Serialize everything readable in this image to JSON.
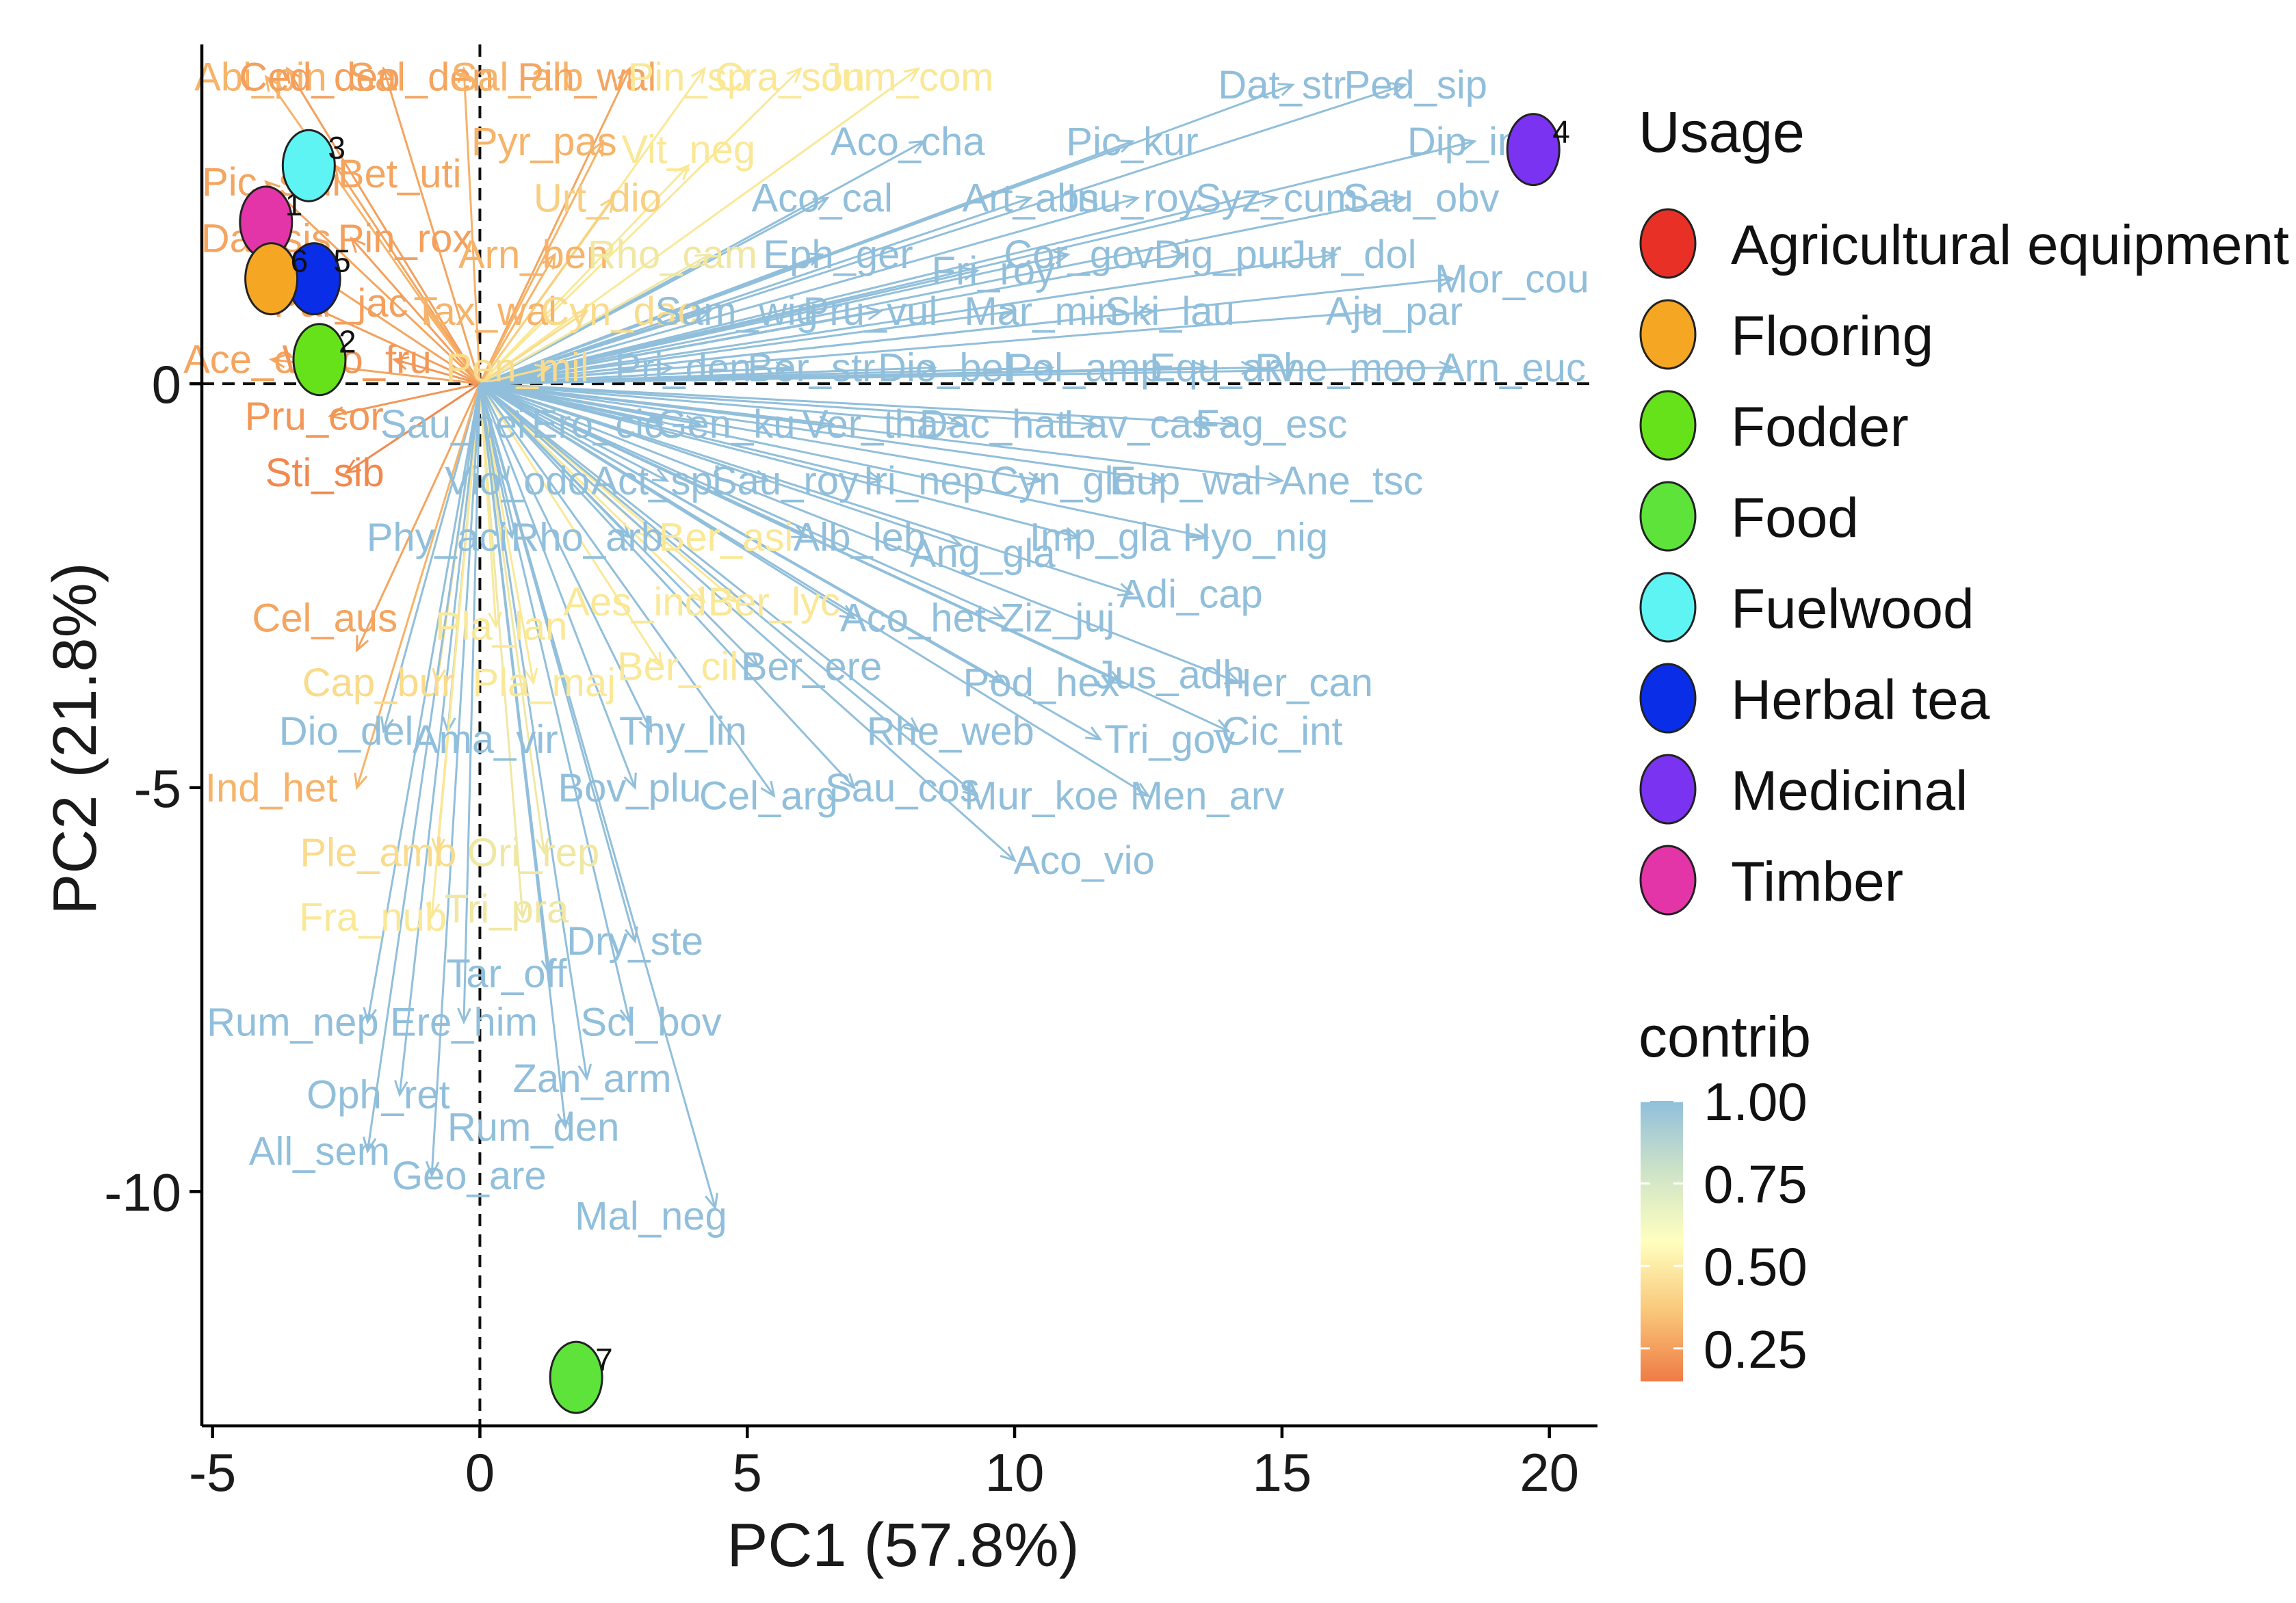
{
  "chart_data": {
    "type": "scatter",
    "subtype": "pca-biplot",
    "xlabel": "PC1 (57.8%)",
    "ylabel": "PC2 (21.8%)",
    "xlim": [
      -5.2,
      20.9
    ],
    "ylim": [
      -12.9,
      4.2
    ],
    "xticks": [
      -5,
      0,
      5,
      10,
      15,
      20
    ],
    "yticks": [
      -10,
      -5,
      0
    ],
    "reference_lines": {
      "x": 0,
      "y": 0,
      "style": "dashed"
    },
    "observations": [
      {
        "id": "1",
        "usage": "Timber",
        "x": -4.0,
        "y": 2.0
      },
      {
        "id": "2",
        "usage": "Fodder",
        "x": -3.0,
        "y": 0.3
      },
      {
        "id": "3",
        "usage": "Fuelwood",
        "x": -3.2,
        "y": 2.7
      },
      {
        "id": "4",
        "usage": "Medicinal",
        "x": 19.7,
        "y": 2.9
      },
      {
        "id": "5",
        "usage": "Herbal tea",
        "x": -3.1,
        "y": 1.3
      },
      {
        "id": "6",
        "usage": "Flooring",
        "x": -3.9,
        "y": 1.3
      },
      {
        "id": "7",
        "usage": "Food",
        "x": 1.8,
        "y": -12.3
      }
    ],
    "variables": [
      {
        "name": "Abi_pin",
        "x": -4.0,
        "y": 3.8,
        "lx": -4.1,
        "ly": 3.8,
        "contrib": 0.35
      },
      {
        "name": "Ced_deo",
        "x": -3.6,
        "y": 3.9,
        "lx": -3.0,
        "ly": 3.8,
        "contrib": 0.28
      },
      {
        "name": "Sal_den",
        "x": -1.8,
        "y": 3.9,
        "lx": -1.1,
        "ly": 3.8,
        "contrib": 0.3
      },
      {
        "name": "Sal_alb",
        "x": -0.3,
        "y": 3.9,
        "lx": 0.7,
        "ly": 3.8,
        "contrib": 0.35
      },
      {
        "name": "Pin_wal",
        "x": 2.8,
        "y": 3.9,
        "lx": 2.0,
        "ly": 3.8,
        "contrib": 0.3
      },
      {
        "name": "Pin_sp",
        "x": 4.2,
        "y": 3.9,
        "lx": 3.9,
        "ly": 3.8,
        "contrib": 0.55
      },
      {
        "name": "Cra_son",
        "x": 6.0,
        "y": 3.9,
        "lx": 5.8,
        "ly": 3.8,
        "contrib": 0.55
      },
      {
        "name": "Jum_com",
        "x": 8.2,
        "y": 3.9,
        "lx": 8.0,
        "ly": 3.8,
        "contrib": 0.55
      },
      {
        "name": "Dat_str",
        "x": 15.2,
        "y": 3.7,
        "lx": 15.0,
        "ly": 3.7,
        "contrib": 1.0
      },
      {
        "name": "Ped_sip",
        "x": 17.3,
        "y": 3.7,
        "lx": 17.5,
        "ly": 3.7,
        "contrib": 1.0
      },
      {
        "name": "Dip_ine",
        "x": 18.6,
        "y": 3.0,
        "lx": 18.6,
        "ly": 3.0,
        "contrib": 1.0
      },
      {
        "name": "Aco_cha",
        "x": 8.3,
        "y": 3.0,
        "lx": 8.0,
        "ly": 3.0,
        "contrib": 1.0
      },
      {
        "name": "Pic_kur",
        "x": 12.2,
        "y": 3.0,
        "lx": 12.2,
        "ly": 3.0,
        "contrib": 1.0
      },
      {
        "name": "Pyr_pas",
        "x": 2.3,
        "y": 3.0,
        "lx": 1.2,
        "ly": 3.0,
        "contrib": 0.35
      },
      {
        "name": "Vit_neg",
        "x": 3.9,
        "y": 2.7,
        "lx": 3.9,
        "ly": 2.9,
        "contrib": 0.55
      },
      {
        "name": "Bet_uti",
        "x": -2.7,
        "y": 2.7,
        "lx": -1.5,
        "ly": 2.6,
        "contrib": 0.3
      },
      {
        "name": "Pic_smi",
        "x": -4.0,
        "y": 2.5,
        "lx": -3.9,
        "ly": 2.5,
        "contrib": 0.3
      },
      {
        "name": "Aco_cal",
        "x": 6.5,
        "y": 2.3,
        "lx": 6.4,
        "ly": 2.3,
        "contrib": 1.0
      },
      {
        "name": "Art_abs",
        "x": 10.3,
        "y": 2.3,
        "lx": 10.3,
        "ly": 2.3,
        "contrib": 1.0
      },
      {
        "name": "Inu_roy",
        "x": 12.3,
        "y": 2.3,
        "lx": 12.2,
        "ly": 2.3,
        "contrib": 1.0
      },
      {
        "name": "Syz_cum",
        "x": 14.9,
        "y": 2.3,
        "lx": 14.9,
        "ly": 2.3,
        "contrib": 1.0
      },
      {
        "name": "Sau_obv",
        "x": 17.3,
        "y": 2.3,
        "lx": 17.6,
        "ly": 2.3,
        "contrib": 1.0
      },
      {
        "name": "Urt_dio",
        "x": 2.5,
        "y": 2.3,
        "lx": 2.2,
        "ly": 2.3,
        "contrib": 0.45
      },
      {
        "name": "Dal_sis",
        "x": -4.1,
        "y": 1.8,
        "lx": -4.0,
        "ly": 1.8,
        "contrib": 0.3
      },
      {
        "name": "Pin_rox",
        "x": -2.4,
        "y": 1.8,
        "lx": -1.4,
        "ly": 1.8,
        "contrib": 0.28
      },
      {
        "name": "Arn_ben",
        "x": 1.4,
        "y": 1.6,
        "lx": 1.0,
        "ly": 1.6,
        "contrib": 0.35
      },
      {
        "name": "Rho_cam",
        "x": 4.3,
        "y": 1.6,
        "lx": 3.6,
        "ly": 1.6,
        "contrib": 0.6
      },
      {
        "name": "Eph_ger",
        "x": 6.4,
        "y": 1.6,
        "lx": 6.7,
        "ly": 1.6,
        "contrib": 1.0
      },
      {
        "name": "Cor_gov",
        "x": 11.0,
        "y": 1.6,
        "lx": 11.2,
        "ly": 1.6,
        "contrib": 1.0
      },
      {
        "name": "Dig_pur",
        "x": 13.2,
        "y": 1.6,
        "lx": 13.9,
        "ly": 1.6,
        "contrib": 1.0
      },
      {
        "name": "Jur_dol",
        "x": 16.0,
        "y": 1.6,
        "lx": 16.3,
        "ly": 1.6,
        "contrib": 1.0
      },
      {
        "name": "Fri_roy",
        "x": 9.3,
        "y": 1.4,
        "lx": 9.6,
        "ly": 1.4,
        "contrib": 1.0
      },
      {
        "name": "Mor_cou",
        "x": 18.2,
        "y": 1.3,
        "lx": 19.3,
        "ly": 1.3,
        "contrib": 1.0
      },
      {
        "name": "Par_jac",
        "x": -3.3,
        "y": 1.0,
        "lx": -2.6,
        "ly": 1.0,
        "contrib": 0.28
      },
      {
        "name": "Tax_wal",
        "x": -1.0,
        "y": 0.9,
        "lx": 0.1,
        "ly": 0.9,
        "contrib": 0.35
      },
      {
        "name": "Cyn_dac",
        "x": 2.0,
        "y": 0.9,
        "lx": 2.6,
        "ly": 0.9,
        "contrib": 0.5
      },
      {
        "name": "Sam_wig",
        "x": 4.3,
        "y": 0.9,
        "lx": 4.8,
        "ly": 0.9,
        "contrib": 1.0
      },
      {
        "name": "Pru_vul",
        "x": 7.5,
        "y": 0.9,
        "lx": 7.3,
        "ly": 0.9,
        "contrib": 1.0
      },
      {
        "name": "Mar_min",
        "x": 10.0,
        "y": 0.9,
        "lx": 10.5,
        "ly": 0.9,
        "contrib": 1.0
      },
      {
        "name": "Ski_lau",
        "x": 12.6,
        "y": 0.9,
        "lx": 12.9,
        "ly": 0.9,
        "contrib": 1.0
      },
      {
        "name": "Aju_par",
        "x": 16.8,
        "y": 0.9,
        "lx": 17.1,
        "ly": 0.9,
        "contrib": 1.0
      },
      {
        "name": "Ace_cae",
        "x": -3.9,
        "y": 0.3,
        "lx": -4.1,
        "ly": 0.3,
        "contrib": 0.3
      },
      {
        "name": "Woo_fru",
        "x": -1.6,
        "y": 0.3,
        "lx": -2.3,
        "ly": 0.3,
        "contrib": 0.25
      },
      {
        "name": "Pen_mil",
        "x": 1.3,
        "y": 0.2,
        "lx": 0.7,
        "ly": 0.2,
        "contrib": 0.5
      },
      {
        "name": "Pri_den",
        "x": 3.6,
        "y": 0.2,
        "lx": 3.8,
        "ly": 0.2,
        "contrib": 1.0
      },
      {
        "name": "Ber_str",
        "x": 5.8,
        "y": 0.2,
        "lx": 6.2,
        "ly": 0.2,
        "contrib": 1.0
      },
      {
        "name": "Dio_bel",
        "x": 8.5,
        "y": 0.2,
        "lx": 8.7,
        "ly": 0.2,
        "contrib": 1.0
      },
      {
        "name": "Pol_amp",
        "x": 10.7,
        "y": 0.2,
        "lx": 11.3,
        "ly": 0.2,
        "contrib": 1.0
      },
      {
        "name": "Equ_arv",
        "x": 13.6,
        "y": 0.2,
        "lx": 13.9,
        "ly": 0.2,
        "contrib": 1.0
      },
      {
        "name": "Rhe_moo",
        "x": 14.5,
        "y": 0.2,
        "lx": 16.1,
        "ly": 0.2,
        "contrib": 1.0
      },
      {
        "name": "Arn_euc",
        "x": 18.2,
        "y": 0.2,
        "lx": 19.3,
        "ly": 0.2,
        "contrib": 1.0
      },
      {
        "name": "Pru_cor",
        "x": -2.8,
        "y": -0.4,
        "lx": -3.1,
        "ly": -0.4,
        "contrib": 0.25
      },
      {
        "name": "Sau_hei",
        "x": 0.8,
        "y": -0.5,
        "lx": -0.5,
        "ly": -0.5,
        "contrib": 1.0
      },
      {
        "name": "Ero_cic",
        "x": 3.4,
        "y": -0.5,
        "lx": 2.2,
        "ly": -0.5,
        "contrib": 1.0
      },
      {
        "name": "Gen_ku",
        "x": 4.1,
        "y": -0.5,
        "lx": 4.6,
        "ly": -0.5,
        "contrib": 1.0
      },
      {
        "name": "Ver_tha",
        "x": 6.6,
        "y": -0.5,
        "lx": 7.3,
        "ly": -0.5,
        "contrib": 1.0
      },
      {
        "name": "Dac_hat",
        "x": 9.0,
        "y": -0.5,
        "lx": 9.6,
        "ly": -0.5,
        "contrib": 1.0
      },
      {
        "name": "Lav_cas",
        "x": 11.5,
        "y": -0.5,
        "lx": 12.3,
        "ly": -0.5,
        "contrib": 1.0
      },
      {
        "name": "Fag_esc",
        "x": 14.1,
        "y": -0.5,
        "lx": 14.8,
        "ly": -0.5,
        "contrib": 1.0
      },
      {
        "name": "Sti_sib",
        "x": -2.5,
        "y": -1.1,
        "lx": -2.9,
        "ly": -1.1,
        "contrib": 0.2
      },
      {
        "name": "Vio_odo",
        "x": 0.5,
        "y": -1.2,
        "lx": 0.7,
        "ly": -1.2,
        "contrib": 1.0
      },
      {
        "name": "Act_spi",
        "x": 3.5,
        "y": -1.2,
        "lx": 3.3,
        "ly": -1.2,
        "contrib": 1.0
      },
      {
        "name": "Sau_roy",
        "x": 5.4,
        "y": -1.2,
        "lx": 5.7,
        "ly": -1.2,
        "contrib": 1.0
      },
      {
        "name": "Iri_nep",
        "x": 7.5,
        "y": -1.2,
        "lx": 8.3,
        "ly": -1.2,
        "contrib": 1.0
      },
      {
        "name": "Cyn_glo",
        "x": 10.5,
        "y": -1.2,
        "lx": 10.9,
        "ly": -1.2,
        "contrib": 1.0
      },
      {
        "name": "Eup_wal",
        "x": 12.8,
        "y": -1.2,
        "lx": 13.2,
        "ly": -1.2,
        "contrib": 1.0
      },
      {
        "name": "Ane_tsc",
        "x": 15.0,
        "y": -1.2,
        "lx": 16.3,
        "ly": -1.2,
        "contrib": 1.0
      },
      {
        "name": "Phy_aci",
        "x": 0.6,
        "y": -1.9,
        "lx": -0.8,
        "ly": -1.9,
        "contrib": 1.0
      },
      {
        "name": "Rho_arb",
        "x": 2.8,
        "y": -1.9,
        "lx": 2.0,
        "ly": -1.9,
        "contrib": 1.0
      },
      {
        "name": "Ber_asi",
        "x": 3.2,
        "y": -1.9,
        "lx": 4.6,
        "ly": -1.9,
        "contrib": 0.55
      },
      {
        "name": "Alb_leb",
        "x": 6.1,
        "y": -1.9,
        "lx": 7.1,
        "ly": -1.9,
        "contrib": 1.0
      },
      {
        "name": "Ang_gla",
        "x": 9.0,
        "y": -2.0,
        "lx": 9.4,
        "ly": -2.1,
        "contrib": 1.0
      },
      {
        "name": "Imp_gla",
        "x": 11.2,
        "y": -1.9,
        "lx": 11.6,
        "ly": -1.9,
        "contrib": 1.0
      },
      {
        "name": "Hyo_nig",
        "x": 13.6,
        "y": -1.9,
        "lx": 14.5,
        "ly": -1.9,
        "contrib": 1.0
      },
      {
        "name": "Adi_cap",
        "x": 12.2,
        "y": -2.6,
        "lx": 13.3,
        "ly": -2.6,
        "contrib": 1.0
      },
      {
        "name": "Cel_aus",
        "x": -2.3,
        "y": -3.3,
        "lx": -2.9,
        "ly": -2.9,
        "contrib": 0.3
      },
      {
        "name": "Pla_lan",
        "x": 0.3,
        "y": -3.0,
        "lx": 0.4,
        "ly": -3.0,
        "contrib": 0.55
      },
      {
        "name": "Aes_ind",
        "x": 4.2,
        "y": -2.7,
        "lx": 2.9,
        "ly": -2.7,
        "contrib": 0.55
      },
      {
        "name": "Ber_lyc",
        "x": 4.8,
        "y": -2.7,
        "lx": 5.5,
        "ly": -2.7,
        "contrib": 0.55
      },
      {
        "name": "Aco_het",
        "x": 7.0,
        "y": -2.9,
        "lx": 8.1,
        "ly": -2.9,
        "contrib": 1.0
      },
      {
        "name": "Ziz_juj",
        "x": 9.8,
        "y": -2.9,
        "lx": 10.8,
        "ly": -2.9,
        "contrib": 1.0
      },
      {
        "name": "Cap_bur",
        "x": -0.8,
        "y": -3.7,
        "lx": -1.9,
        "ly": -3.7,
        "contrib": 0.5
      },
      {
        "name": "Pla_maj",
        "x": 1.0,
        "y": -3.7,
        "lx": 1.2,
        "ly": -3.7,
        "contrib": 0.55
      },
      {
        "name": "Ber_cil",
        "x": 3.4,
        "y": -3.5,
        "lx": 3.7,
        "ly": -3.5,
        "contrib": 0.55
      },
      {
        "name": "Ber_ere",
        "x": 5.2,
        "y": -3.5,
        "lx": 6.2,
        "ly": -3.5,
        "contrib": 1.0
      },
      {
        "name": "Pod_hex",
        "x": 9.8,
        "y": -3.7,
        "lx": 10.5,
        "ly": -3.7,
        "contrib": 1.0
      },
      {
        "name": "Jus_adh",
        "x": 12.0,
        "y": -3.7,
        "lx": 12.9,
        "ly": -3.6,
        "contrib": 1.0
      },
      {
        "name": "Her_can",
        "x": 14.2,
        "y": -3.7,
        "lx": 15.3,
        "ly": -3.7,
        "contrib": 1.0
      },
      {
        "name": "Dio_del",
        "x": -1.8,
        "y": -4.3,
        "lx": -2.5,
        "ly": -4.3,
        "contrib": 1.0
      },
      {
        "name": "Ama_vir",
        "x": -0.6,
        "y": -4.3,
        "lx": 0.1,
        "ly": -4.4,
        "contrib": 1.0
      },
      {
        "name": "Thy_lin",
        "x": 3.2,
        "y": -4.3,
        "lx": 3.8,
        "ly": -4.3,
        "contrib": 1.0
      },
      {
        "name": "Rhe_web",
        "x": 8.2,
        "y": -4.3,
        "lx": 8.8,
        "ly": -4.3,
        "contrib": 1.0
      },
      {
        "name": "Tri_gov",
        "x": 11.6,
        "y": -4.4,
        "lx": 12.9,
        "ly": -4.4,
        "contrib": 1.0
      },
      {
        "name": "Cic_int",
        "x": 14.0,
        "y": -4.3,
        "lx": 15.0,
        "ly": -4.3,
        "contrib": 1.0
      },
      {
        "name": "Ind_het",
        "x": -2.3,
        "y": -5.0,
        "lx": -3.9,
        "ly": -5.0,
        "contrib": 0.35
      },
      {
        "name": "Bov_plu",
        "x": 2.9,
        "y": -5.0,
        "lx": 2.8,
        "ly": -5.0,
        "contrib": 1.0
      },
      {
        "name": "Cel_arg",
        "x": 5.5,
        "y": -5.1,
        "lx": 5.4,
        "ly": -5.1,
        "contrib": 1.0
      },
      {
        "name": "Sau_cos",
        "x": 7.0,
        "y": -5.0,
        "lx": 7.9,
        "ly": -5.0,
        "contrib": 1.0
      },
      {
        "name": "Mur_koe",
        "x": 9.3,
        "y": -5.1,
        "lx": 10.5,
        "ly": -5.1,
        "contrib": 1.0
      },
      {
        "name": "Men_arv",
        "x": 12.5,
        "y": -5.1,
        "lx": 13.6,
        "ly": -5.1,
        "contrib": 1.0
      },
      {
        "name": "Aco_vio",
        "x": 10.0,
        "y": -5.9,
        "lx": 11.3,
        "ly": -5.9,
        "contrib": 1.0
      },
      {
        "name": "Ple_amb",
        "x": -0.8,
        "y": -5.8,
        "lx": -1.9,
        "ly": -5.8,
        "contrib": 0.5
      },
      {
        "name": "Ori_rep",
        "x": 1.2,
        "y": -5.8,
        "lx": 1.0,
        "ly": -5.8,
        "contrib": 0.6
      },
      {
        "name": "Tri_pra",
        "x": 0.8,
        "y": -6.6,
        "lx": 0.5,
        "ly": -6.5,
        "contrib": 0.6
      },
      {
        "name": "Fra_nub",
        "x": -0.9,
        "y": -6.6,
        "lx": -2.0,
        "ly": -6.6,
        "contrib": 0.55
      },
      {
        "name": "Dry_ste",
        "x": 2.9,
        "y": -6.9,
        "lx": 2.9,
        "ly": -6.9,
        "contrib": 1.0
      },
      {
        "name": "Tar_off",
        "x": 1.3,
        "y": -7.3,
        "lx": 0.5,
        "ly": -7.3,
        "contrib": 1.0
      },
      {
        "name": "Scl_bov",
        "x": 2.8,
        "y": -7.9,
        "lx": 3.2,
        "ly": -7.9,
        "contrib": 1.0
      },
      {
        "name": "Rum_nep",
        "x": -2.1,
        "y": -7.9,
        "lx": -3.5,
        "ly": -7.9,
        "contrib": 1.0
      },
      {
        "name": "Ere_him",
        "x": -0.3,
        "y": -7.9,
        "lx": -0.3,
        "ly": -7.9,
        "contrib": 1.0
      },
      {
        "name": "Zan_arm",
        "x": 2.0,
        "y": -8.6,
        "lx": 2.1,
        "ly": -8.6,
        "contrib": 1.0
      },
      {
        "name": "Oph_ret",
        "x": -1.5,
        "y": -8.8,
        "lx": -1.9,
        "ly": -8.8,
        "contrib": 1.0
      },
      {
        "name": "Rum_den",
        "x": 1.6,
        "y": -9.2,
        "lx": 1.0,
        "ly": -9.2,
        "contrib": 1.0
      },
      {
        "name": "All_sem",
        "x": -2.1,
        "y": -9.5,
        "lx": -3.0,
        "ly": -9.5,
        "contrib": 1.0
      },
      {
        "name": "Geo_are",
        "x": -0.9,
        "y": -9.8,
        "lx": -0.2,
        "ly": -9.8,
        "contrib": 1.0
      },
      {
        "name": "Mal_neg",
        "x": 4.4,
        "y": -10.2,
        "lx": 3.2,
        "ly": -10.3,
        "contrib": 1.0
      }
    ],
    "legend": {
      "usage_title": "Usage",
      "usage_items": [
        {
          "label": "Agricultural equipment",
          "color": "#e83026"
        },
        {
          "label": "Flooring",
          "color": "#f5a623"
        },
        {
          "label": "Fodder",
          "color": "#66e21a"
        },
        {
          "label": "Food",
          "color": "#5de33a"
        },
        {
          "label": "Fuelwood",
          "color": "#5ef4f4"
        },
        {
          "label": "Herbal tea",
          "color": "#0a2de8"
        },
        {
          "label": "Medicinal",
          "color": "#7a33f0"
        },
        {
          "label": "Timber",
          "color": "#e335a8"
        }
      ],
      "contrib_title": "contrib",
      "contrib_ticks": [
        1.0,
        0.75,
        0.5,
        0.25
      ],
      "contrib_tick_labels": [
        "1.00",
        "0.75",
        "0.50",
        "0.25"
      ],
      "contrib_range": [
        0.15,
        1.0
      ],
      "contrib_colors": [
        "#ef7b45",
        "#fbe08b",
        "#ffffbf",
        "#cbe7c6",
        "#91bfdb"
      ]
    }
  }
}
